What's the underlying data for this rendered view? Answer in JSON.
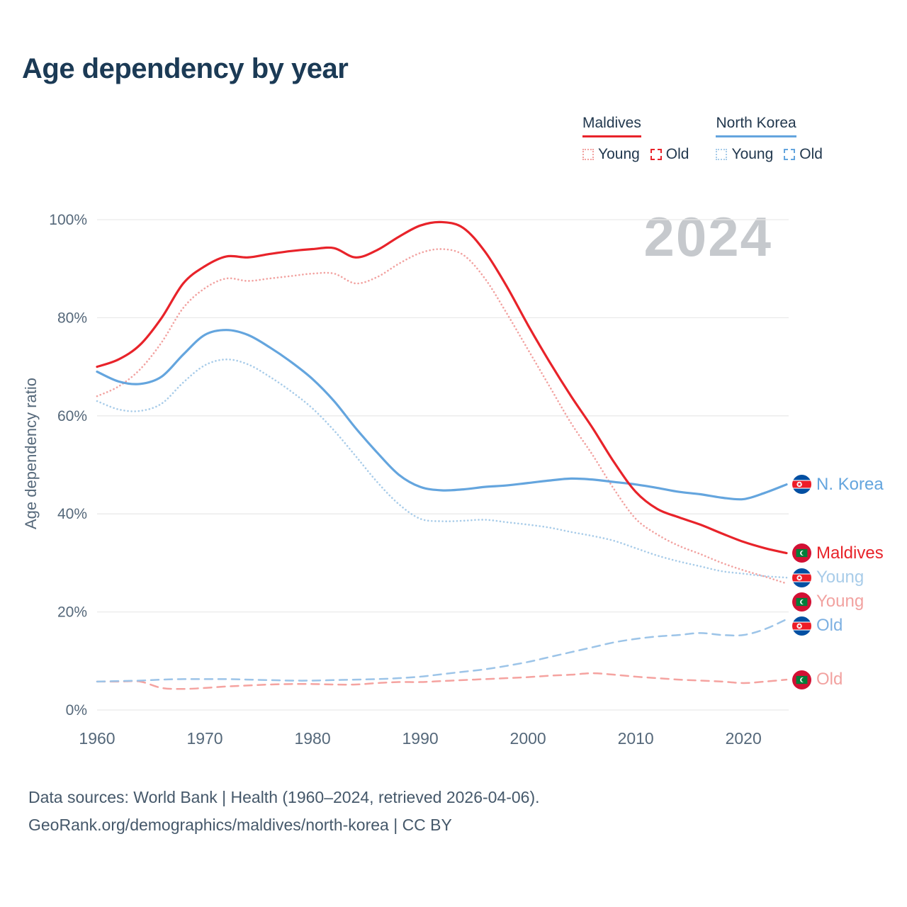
{
  "title": "Age dependency by year",
  "watermark": "2024",
  "legend": {
    "groups": [
      {
        "name": "Maldives",
        "color": "#e8232a",
        "items": [
          {
            "label": "Young",
            "style": "dotted",
            "color": "#f2a2a0"
          },
          {
            "label": "Old",
            "style": "dashed",
            "color": "#e8232a"
          }
        ]
      },
      {
        "name": "North Korea",
        "color": "#64a5de",
        "items": [
          {
            "label": "Young",
            "style": "dotted",
            "color": "#a8cce9"
          },
          {
            "label": "Old",
            "style": "dashed",
            "color": "#64a5de"
          }
        ]
      }
    ]
  },
  "chart_data": {
    "type": "line",
    "title": "Age dependency by year",
    "xlabel": "",
    "ylabel": "Age dependency ratio",
    "xlim": [
      1960,
      2024
    ],
    "ylim": [
      0,
      100
    ],
    "grid": "horizontal",
    "legend_position": "top-right",
    "x_ticks": [
      1960,
      1970,
      1980,
      1990,
      2000,
      2010,
      2020
    ],
    "x_tick_labels": [
      "1960",
      "1970",
      "1980",
      "1990",
      "2000",
      "2010",
      "2020"
    ],
    "y_ticks": [
      0,
      20,
      40,
      60,
      80,
      100
    ],
    "y_tick_labels": [
      "0%",
      "20%",
      "40%",
      "60%",
      "80%",
      "100%"
    ],
    "x": [
      1960,
      1962,
      1964,
      1966,
      1968,
      1970,
      1972,
      1974,
      1976,
      1978,
      1980,
      1982,
      1984,
      1986,
      1988,
      1990,
      1992,
      1994,
      1996,
      1998,
      2000,
      2002,
      2004,
      2006,
      2008,
      2010,
      2012,
      2014,
      2016,
      2018,
      2020,
      2022,
      2024
    ],
    "series": [
      {
        "name": "Maldives Old",
        "style": "dashed",
        "color": "#f5a3a0",
        "values": [
          5.8,
          5.8,
          5.8,
          4.5,
          4.3,
          4.5,
          4.8,
          5.0,
          5.2,
          5.3,
          5.3,
          5.2,
          5.2,
          5.5,
          5.7,
          5.7,
          5.9,
          6.1,
          6.3,
          6.5,
          6.7,
          7.0,
          7.2,
          7.5,
          7.2,
          6.8,
          6.5,
          6.2,
          6.0,
          5.8,
          5.5,
          5.8,
          6.2
        ]
      },
      {
        "name": "North Korea Old",
        "style": "dashed",
        "color": "#9cc4e8",
        "values": [
          5.8,
          5.9,
          6.0,
          6.2,
          6.3,
          6.3,
          6.3,
          6.2,
          6.1,
          6.0,
          6.0,
          6.1,
          6.2,
          6.3,
          6.5,
          6.8,
          7.3,
          7.8,
          8.3,
          9.0,
          9.8,
          10.8,
          11.8,
          12.8,
          13.8,
          14.5,
          15.0,
          15.3,
          15.7,
          15.3,
          15.3,
          16.5,
          18.5
        ]
      },
      {
        "name": "Maldives Young",
        "style": "dotted",
        "color": "#f2a2a0",
        "values": [
          64,
          66,
          69.5,
          75,
          82,
          86,
          88,
          87.5,
          88,
          88.5,
          89,
          89,
          87,
          88.3,
          91,
          93.2,
          94,
          92.8,
          88,
          81,
          73.5,
          66,
          58.5,
          52,
          45,
          39,
          35.8,
          33.5,
          31.8,
          30,
          28.5,
          27.2,
          25.8
        ]
      },
      {
        "name": "North Korea Young",
        "style": "dotted",
        "color": "#a8cce9",
        "values": [
          63,
          61.3,
          61,
          62.5,
          66.8,
          70.3,
          71.5,
          70.5,
          68,
          65,
          61.5,
          57,
          51.8,
          46.5,
          42,
          39,
          38.5,
          38.6,
          38.8,
          38.3,
          37.8,
          37.2,
          36.3,
          35.5,
          34.5,
          33,
          31.5,
          30.3,
          29.3,
          28.3,
          27.8,
          27.3,
          27
        ]
      },
      {
        "name": "North Korea",
        "style": "solid",
        "color": "#64a5de",
        "values": [
          69,
          67,
          66.5,
          68,
          72.5,
          76.5,
          77.5,
          76.5,
          74,
          71,
          67.5,
          63,
          57.5,
          52.5,
          48,
          45.5,
          44.8,
          45,
          45.5,
          45.8,
          46.3,
          46.8,
          47.2,
          47,
          46.5,
          46,
          45.3,
          44.5,
          44,
          43.3,
          43,
          44.3,
          46
        ]
      },
      {
        "name": "Maldives",
        "style": "solid",
        "color": "#e8232a",
        "values": [
          70,
          71.5,
          74.5,
          80,
          87,
          90.5,
          92.5,
          92.3,
          93,
          93.6,
          94,
          94.2,
          92.3,
          93.8,
          96.5,
          98.8,
          99.5,
          98.3,
          93.5,
          86.5,
          78.5,
          71,
          64,
          57.5,
          50.5,
          44.5,
          41,
          39.3,
          37.8,
          36,
          34.3,
          33,
          32
        ]
      }
    ]
  },
  "right_labels": [
    {
      "text": "N. Korea",
      "color": "#64a5de",
      "flag": "north-korea",
      "value": 46
    },
    {
      "text": "Maldives",
      "color": "#e8232a",
      "flag": "maldives",
      "value": 32
    },
    {
      "text": "Young",
      "color": "#a8cce9",
      "flag": "north-korea",
      "value": 27
    },
    {
      "text": "Young",
      "color": "#f2a2a0",
      "flag": "maldives",
      "value": 25.8
    },
    {
      "text": "Old",
      "color": "#7eb1e2",
      "flag": "north-korea",
      "value": 18.5
    },
    {
      "text": "Old",
      "color": "#f2a2a0",
      "flag": "maldives",
      "value": 6.2
    }
  ],
  "footer": {
    "line1": "Data sources: World Bank | Health (1960–2024, retrieved 2026-04-06).",
    "line2": "GeoRank.org/demographics/maldives/north-korea | CC BY"
  }
}
